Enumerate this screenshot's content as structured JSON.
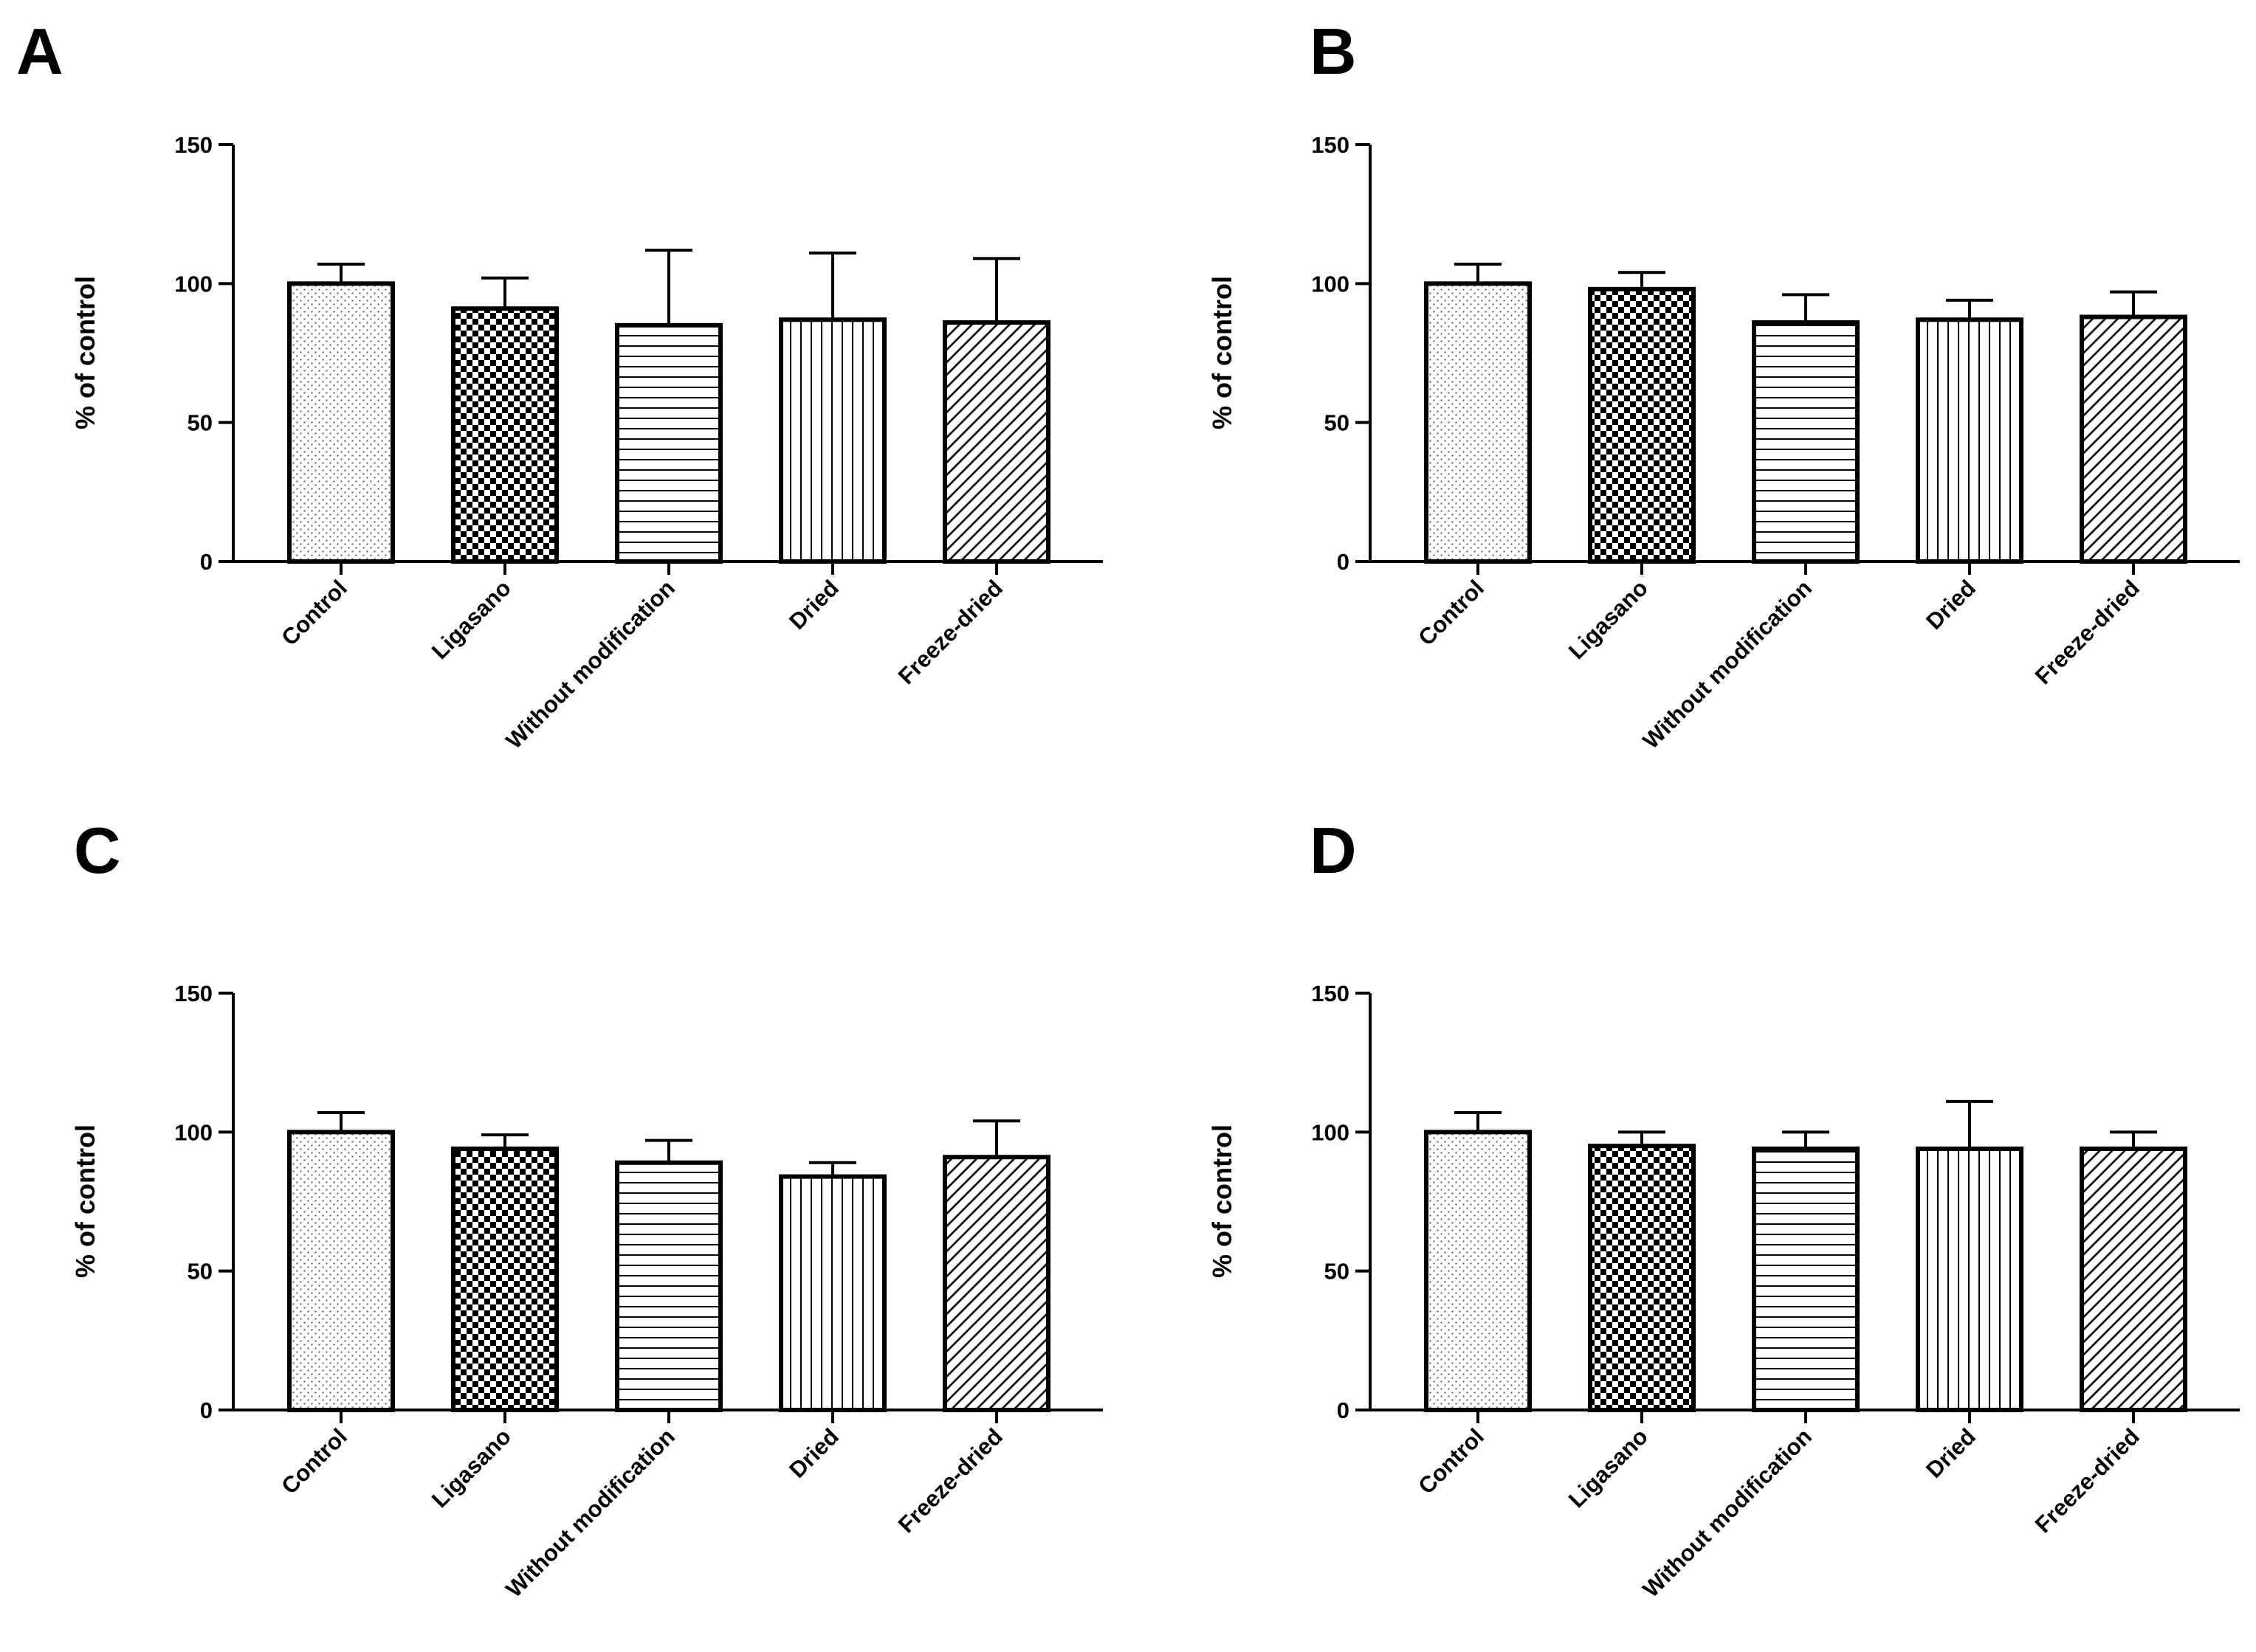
{
  "chart_data": [
    {
      "panel": "A",
      "type": "bar",
      "ylabel": "% of control",
      "ylim": [
        0,
        150
      ],
      "yticks": [
        "0",
        "50",
        "100",
        "150"
      ],
      "categories": [
        "Control",
        "Ligasano",
        "Without modification",
        "Dried",
        "Freeze-dried"
      ],
      "values": [
        100,
        91,
        85,
        87,
        86
      ],
      "errors": [
        7,
        11,
        27,
        24,
        23
      ]
    },
    {
      "panel": "B",
      "type": "bar",
      "ylabel": "% of control",
      "ylim": [
        0,
        150
      ],
      "yticks": [
        "0",
        "50",
        "100",
        "150"
      ],
      "categories": [
        "Control",
        "Ligasano",
        "Without modification",
        "Dried",
        "Freeze-dried"
      ],
      "values": [
        100,
        98,
        86,
        87,
        88
      ],
      "errors": [
        7,
        6,
        10,
        7,
        9
      ]
    },
    {
      "panel": "C",
      "type": "bar",
      "ylabel": "% of control",
      "ylim": [
        0,
        150
      ],
      "yticks": [
        "0",
        "50",
        "100",
        "150"
      ],
      "categories": [
        "Control",
        "Ligasano",
        "Without modification",
        "Dried",
        "Freeze-dried"
      ],
      "values": [
        100,
        94,
        89,
        84,
        91
      ],
      "errors": [
        7,
        5,
        8,
        5,
        13
      ]
    },
    {
      "panel": "D",
      "type": "bar",
      "ylabel": "% of control",
      "ylim": [
        0,
        150
      ],
      "yticks": [
        "0",
        "50",
        "100",
        "150"
      ],
      "categories": [
        "Control",
        "Ligasano",
        "Without modification",
        "Dried",
        "Freeze-dried"
      ],
      "values": [
        100,
        95,
        94,
        94,
        94
      ],
      "errors": [
        7,
        5,
        6,
        17,
        6
      ]
    }
  ]
}
